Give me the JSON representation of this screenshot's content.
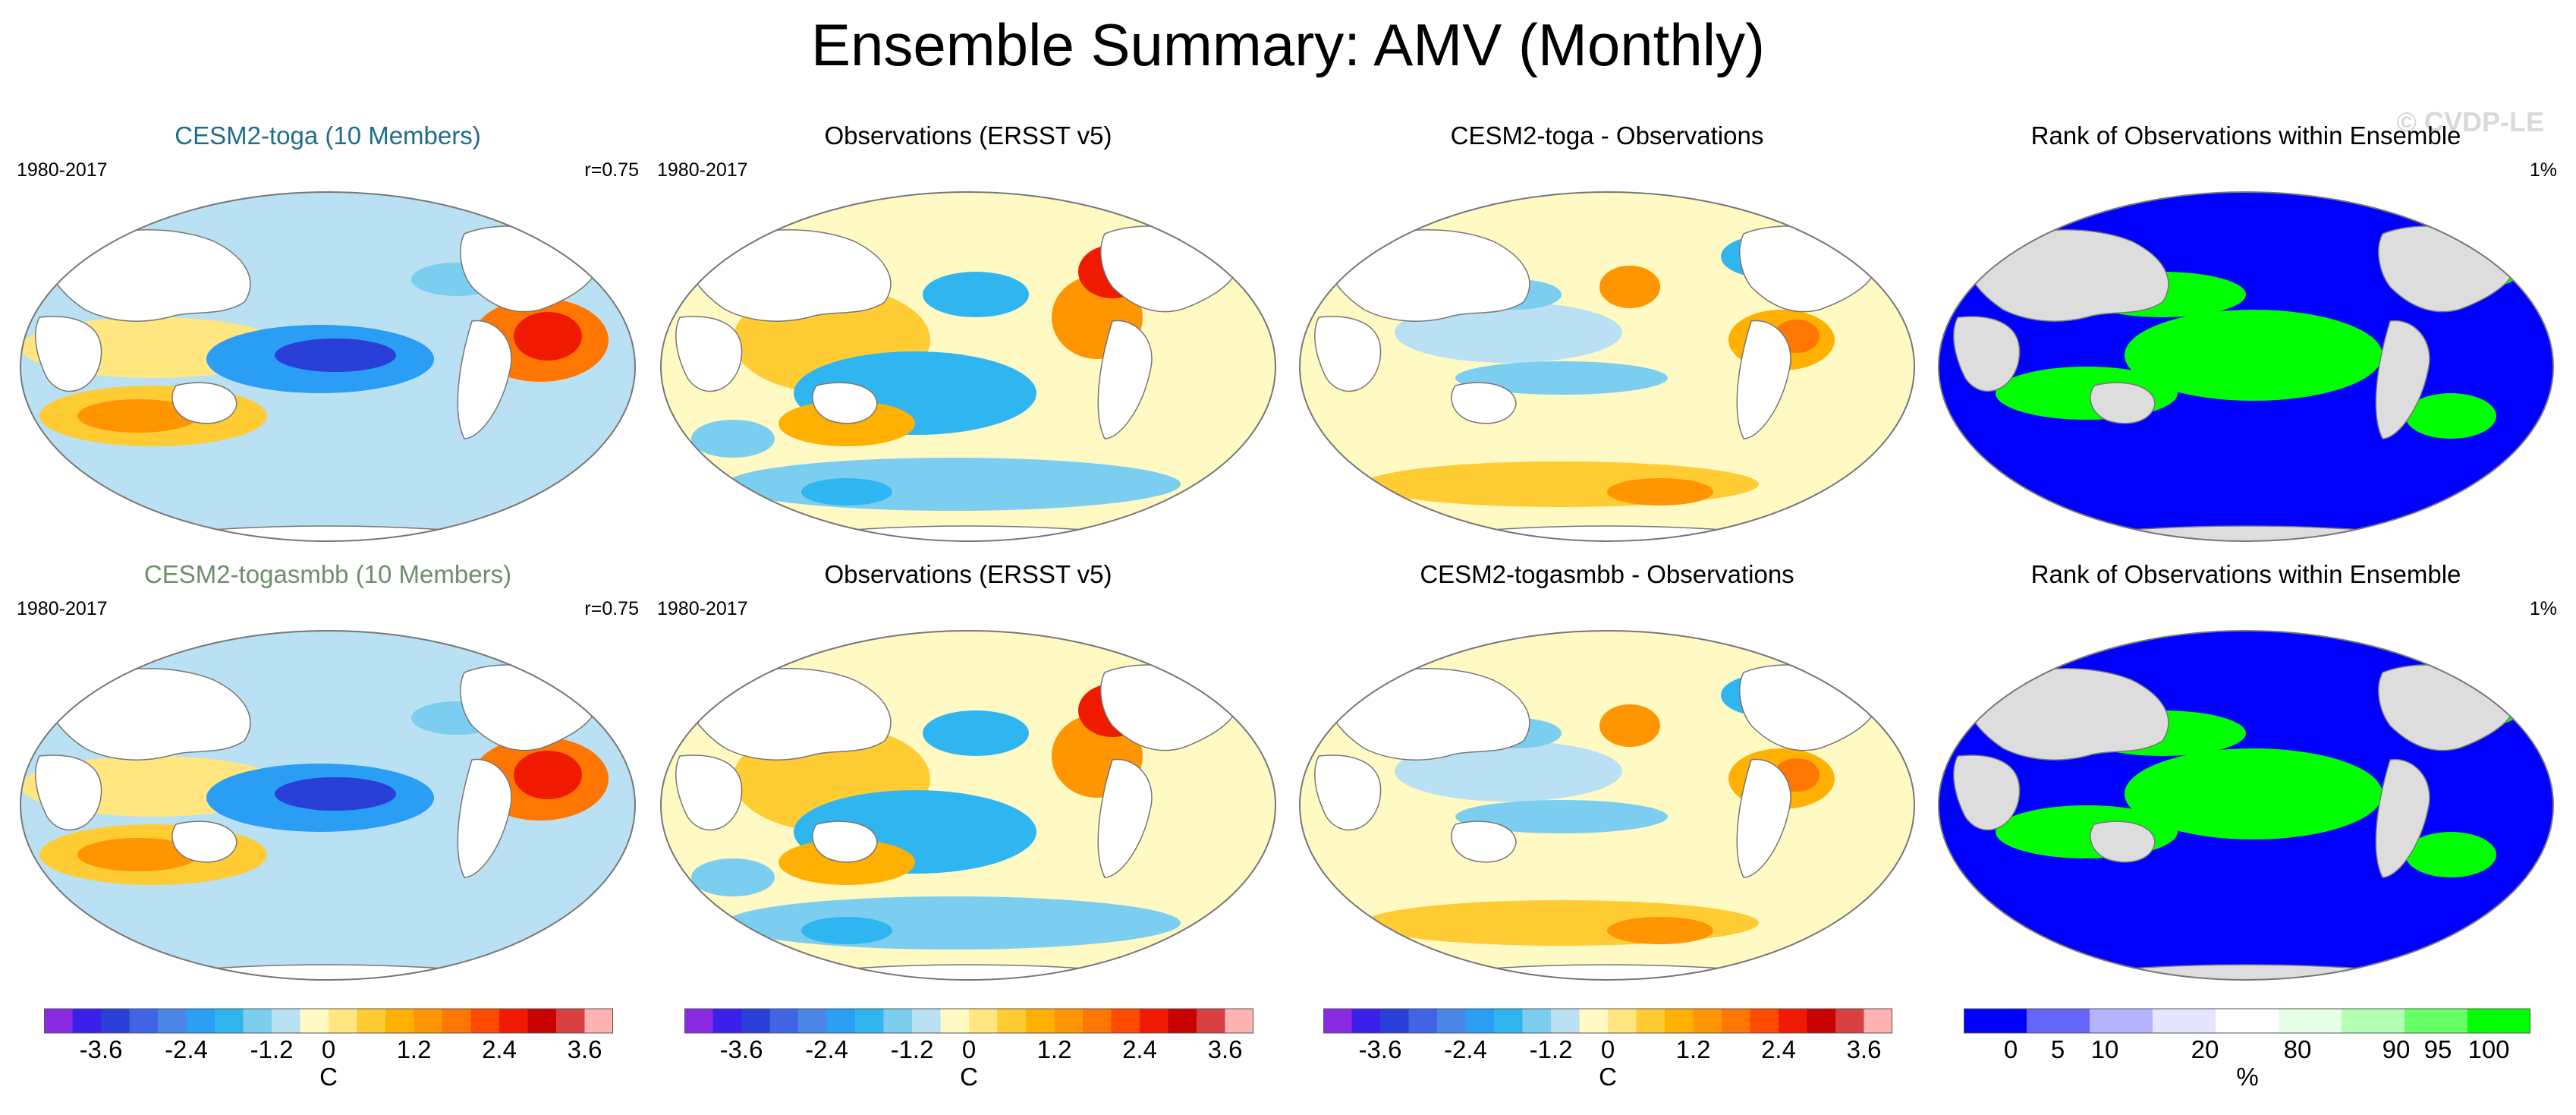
{
  "title": "Ensemble Summary: AMV (Monthly)",
  "watermark": "© CVDP-LE",
  "colors": {
    "model_title_1": "#1f6d8c",
    "model_title_2": "#6e8f6a",
    "rank_low": "#0000ff",
    "rank_high": "#00ff00",
    "land": "#dddddd"
  },
  "panels": [
    {
      "title": "CESM2-toga (10 Members)",
      "left": "1980-2017",
      "right": "r=0.75",
      "kind": "model"
    },
    {
      "title": "Observations (ERSST v5)",
      "left": "1980-2017",
      "right": "",
      "kind": "obs"
    },
    {
      "title": "CESM2-toga - Observations",
      "left": "",
      "right": "",
      "kind": "diff"
    },
    {
      "title": "Rank of Observations within Ensemble",
      "left": "",
      "right": "1%",
      "kind": "rank"
    },
    {
      "title": "CESM2-togasmbb (10 Members)",
      "left": "1980-2017",
      "right": "r=0.75",
      "kind": "model"
    },
    {
      "title": "Observations (ERSST v5)",
      "left": "1980-2017",
      "right": "",
      "kind": "obs"
    },
    {
      "title": "CESM2-togasmbb - Observations",
      "left": "",
      "right": "",
      "kind": "diff"
    },
    {
      "title": "Rank of Observations within Ensemble",
      "left": "",
      "right": "1%",
      "kind": "rank"
    }
  ],
  "colorbar_temp": {
    "unit": "C",
    "tick_labels": [
      "-3.6",
      "-2.4",
      "-1.2",
      "0",
      "1.2",
      "2.4",
      "3.6"
    ],
    "colors": [
      "#8a2be2",
      "#3a20e8",
      "#2a3fd8",
      "#3f64e6",
      "#4a86e8",
      "#2a9df4",
      "#2fb6f0",
      "#7ccef0",
      "#b9e0f3",
      "#fff9c4",
      "#ffe680",
      "#ffcc33",
      "#ffb000",
      "#ff9500",
      "#ff7700",
      "#ff4a00",
      "#f01a00",
      "#c80000",
      "#d94040",
      "#ffb3b3"
    ]
  },
  "colorbar_rank": {
    "unit": "%",
    "tick_labels": [
      "0",
      "5",
      "10",
      "20",
      "80",
      "90",
      "95",
      "100"
    ],
    "colors": [
      "#0000ff",
      "#6666ff",
      "#b3b3ff",
      "#e5e5ff",
      "#ffffff",
      "#e5ffe5",
      "#b3ffb3",
      "#66ff66",
      "#00ff00"
    ]
  }
}
